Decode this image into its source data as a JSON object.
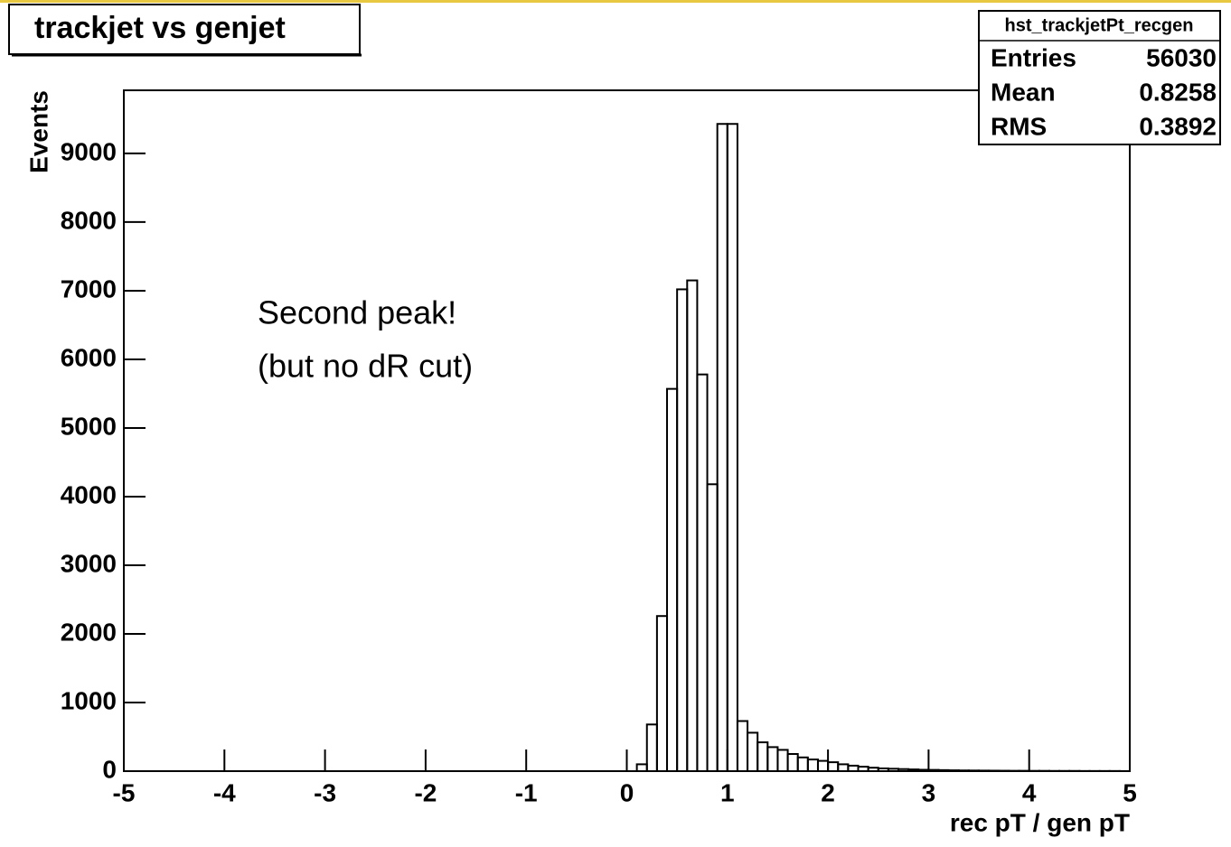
{
  "chart_data": {
    "type": "histogram",
    "title": "trackjet vs genjet",
    "xlabel": "rec pT / gen pT",
    "ylabel": "Events",
    "bins": [
      0,
      0.1,
      0.2,
      0.3,
      0.4,
      0.5,
      0.6,
      0.7,
      0.8,
      0.9,
      1,
      1.1,
      1.2,
      1.3,
      1.4,
      1.5,
      1.6,
      1.7,
      1.8,
      1.9,
      2,
      2.1,
      2.2,
      2.3,
      2.4,
      2.5,
      2.6,
      2.7,
      2.8,
      2.9,
      3,
      3.1,
      3.2,
      3.3,
      3.4,
      3.5,
      3.6,
      3.7,
      3.8,
      3.9,
      4,
      4.1,
      4.2,
      4.3,
      4.4,
      4.5,
      4.6,
      4.7,
      4.8,
      4.9,
      5
    ],
    "values": [
      0,
      100,
      680,
      2260,
      5570,
      7020,
      7150,
      5780,
      4180,
      9430,
      9430,
      730,
      560,
      420,
      350,
      310,
      250,
      200,
      170,
      150,
      130,
      100,
      80,
      65,
      50,
      40,
      35,
      30,
      25,
      20,
      18,
      15,
      12,
      10,
      9,
      8,
      7,
      6,
      5,
      5,
      4,
      4,
      3,
      3,
      3,
      2,
      2,
      2,
      2,
      1
    ],
    "color": "#000000",
    "xlim": [
      -5,
      5
    ],
    "xticks": [
      -5,
      -4,
      -3,
      -2,
      -1,
      0,
      1,
      2,
      3,
      4,
      5
    ],
    "ylim": [
      0,
      9920
    ],
    "yticks": [
      0,
      1000,
      2000,
      3000,
      4000,
      5000,
      6000,
      7000,
      8000,
      9000
    ],
    "grid": false,
    "annotations": [
      "Second peak!",
      "(but no dR cut)"
    ],
    "stats": {
      "name": "hst_trackjetPt_recgen",
      "rows": [
        {
          "label": "Entries",
          "value": 56030
        },
        {
          "label": "Mean",
          "value": 0.8258
        },
        {
          "label": "RMS",
          "value": 0.3892
        }
      ]
    }
  }
}
